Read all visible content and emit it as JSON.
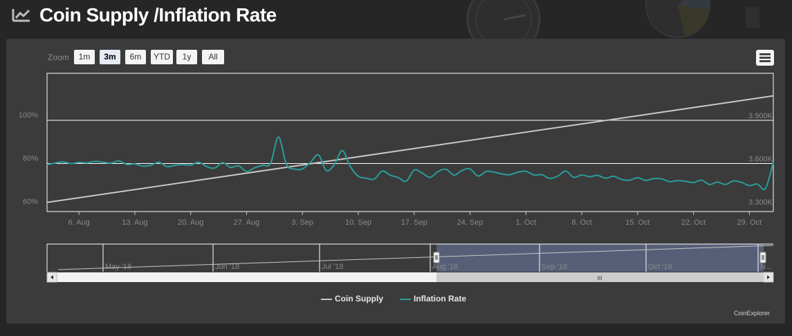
{
  "title": "Coin Supply /Inflation Rate",
  "zoom": {
    "label": "Zoom",
    "buttons": [
      "1m",
      "3m",
      "6m",
      "YTD",
      "1y",
      "All"
    ],
    "selected": "3m"
  },
  "colors": {
    "coin_supply": "#c8c8c8",
    "inflation_rate": "#2a9d9a",
    "navigator_mask": "#5c6683",
    "panel": "#3b3b3b"
  },
  "chart_data": {
    "type": "line",
    "x_tick_labels": [
      "6. Aug",
      "13. Aug",
      "20. Aug",
      "27. Aug",
      "3. Sep",
      "10. Sep",
      "17. Sep",
      "24. Sep",
      "1. Oct",
      "8. Oct",
      "15. Oct",
      "22. Oct",
      "29. Oct"
    ],
    "x_range": [
      "2018-08-02",
      "2018-11-01"
    ],
    "y_left_ticks": [
      "60%",
      "80%",
      "100%"
    ],
    "y_left_range": [
      60,
      100
    ],
    "y_right_ticks": [
      "3.300K",
      "3.600K",
      "3.900K"
    ],
    "y_right_range": [
      3300,
      3900
    ],
    "grid": true,
    "legend_position": "bottom-center",
    "series": [
      {
        "name": "Coin Supply",
        "axis": "right",
        "x": [
          "2018-08-02",
          "2018-11-01"
        ],
        "y": [
          3330,
          4070
        ]
      },
      {
        "name": "Inflation Rate",
        "axis": "left",
        "x": [
          "2018-08-02",
          "2018-08-03",
          "2018-08-04",
          "2018-08-05",
          "2018-08-06",
          "2018-08-07",
          "2018-08-08",
          "2018-08-09",
          "2018-08-10",
          "2018-08-11",
          "2018-08-12",
          "2018-08-13",
          "2018-08-14",
          "2018-08-15",
          "2018-08-16",
          "2018-08-17",
          "2018-08-18",
          "2018-08-19",
          "2018-08-20",
          "2018-08-21",
          "2018-08-22",
          "2018-08-23",
          "2018-08-24",
          "2018-08-25",
          "2018-08-26",
          "2018-08-27",
          "2018-08-28",
          "2018-08-29",
          "2018-08-30",
          "2018-08-31",
          "2018-09-01",
          "2018-09-02",
          "2018-09-03",
          "2018-09-04",
          "2018-09-05",
          "2018-09-06",
          "2018-09-07",
          "2018-09-08",
          "2018-09-09",
          "2018-09-10",
          "2018-09-11",
          "2018-09-12",
          "2018-09-13",
          "2018-09-14",
          "2018-09-15",
          "2018-09-16",
          "2018-09-17",
          "2018-09-18",
          "2018-09-19",
          "2018-09-20",
          "2018-09-21",
          "2018-09-22",
          "2018-09-23",
          "2018-09-24",
          "2018-09-25",
          "2018-09-26",
          "2018-09-27",
          "2018-09-28",
          "2018-09-29",
          "2018-09-30",
          "2018-10-01",
          "2018-10-02",
          "2018-10-03",
          "2018-10-04",
          "2018-10-05",
          "2018-10-06",
          "2018-10-07",
          "2018-10-08",
          "2018-10-09",
          "2018-10-10",
          "2018-10-11",
          "2018-10-12",
          "2018-10-13",
          "2018-10-14",
          "2018-10-15",
          "2018-10-16",
          "2018-10-17",
          "2018-10-18",
          "2018-10-19",
          "2018-10-20",
          "2018-10-21",
          "2018-10-22",
          "2018-10-23",
          "2018-10-24",
          "2018-10-25",
          "2018-10-26",
          "2018-10-27",
          "2018-10-28",
          "2018-10-29",
          "2018-10-30",
          "2018-10-31",
          "2018-11-01"
        ],
        "y": [
          79.5,
          80.2,
          80.8,
          80.0,
          80.5,
          80.3,
          81.0,
          80.6,
          80.2,
          81.2,
          79.6,
          79.8,
          78.8,
          79.2,
          80.6,
          78.6,
          79.1,
          79.5,
          79.3,
          80.6,
          78.6,
          77.9,
          80.4,
          78.2,
          78.9,
          76.4,
          78.0,
          79.2,
          80.0,
          92.3,
          79.5,
          77.4,
          77.5,
          80.5,
          84.0,
          76.7,
          79.5,
          86.0,
          78.6,
          74.1,
          73.2,
          72.8,
          76.5,
          74.6,
          73.5,
          71.8,
          77.0,
          75.6,
          73.6,
          76.3,
          77.3,
          74.6,
          76.8,
          77.5,
          74.2,
          76.3,
          76.0,
          75.2,
          74.8,
          76.0,
          76.4,
          74.7,
          74.8,
          73.1,
          74.2,
          76.5,
          73.6,
          74.7,
          73.9,
          74.5,
          73.2,
          74.1,
          72.6,
          72.3,
          73.4,
          72.2,
          73.0,
          72.9,
          71.6,
          72.1,
          71.8,
          71.2,
          72.3,
          70.3,
          71.4,
          70.3,
          71.9,
          71.3,
          69.8,
          70.5,
          68.4,
          80.5
        ]
      }
    ]
  },
  "navigator": {
    "labels": [
      "May '18",
      "Jun '18",
      "Jul '18",
      "Aug '18",
      "Sep '18",
      "Oct '18",
      "N..."
    ],
    "selection_start": "2018-08-02",
    "selection_end": "2018-11-01",
    "handle_glyph": "III"
  },
  "legend": [
    {
      "name": "Coin Supply"
    },
    {
      "name": "Inflation Rate"
    }
  ],
  "credit": "CoinExplorer"
}
